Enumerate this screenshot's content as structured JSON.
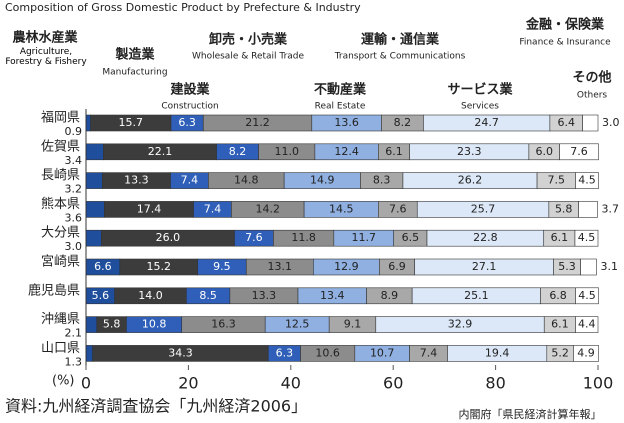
{
  "chart_data": {
    "type": "stacked_barh",
    "subtitle": "Composition of Gross Domestic Product by Prefecture & Industry",
    "categories": [
      "福岡県",
      "佐賀県",
      "長崎県",
      "熊本県",
      "大分県",
      "宮崎県",
      "鹿児島県",
      "沖縄県",
      "山口県"
    ],
    "series": [
      {
        "name": "農林水産業",
        "name_en": "Agriculture, Forestry & Fishery",
        "color": "#1f4e9c",
        "values": [
          0.9,
          3.4,
          3.2,
          3.6,
          3.0,
          6.6,
          5.6,
          2.1,
          1.3
        ],
        "value_labels": [
          "0.9",
          "3.4",
          "3.2",
          "3.6",
          "3.0",
          "6.6",
          "5.6",
          "2.1",
          "1.3"
        ]
      },
      {
        "name": "製造業",
        "name_en": "Manufacturing",
        "color": "#3c3c3c",
        "values": [
          15.7,
          22.1,
          13.3,
          17.4,
          26.0,
          15.2,
          14.0,
          5.8,
          34.3
        ],
        "value_labels": [
          "15.7",
          "22.1",
          "13.3",
          "17.4",
          "26.0",
          "15.2",
          "14.0",
          "5.8",
          "34.3"
        ]
      },
      {
        "name": "建設業",
        "name_en": "Construction",
        "color": "#2f5fb8",
        "values": [
          6.3,
          8.2,
          7.4,
          7.4,
          7.6,
          9.5,
          8.5,
          10.8,
          6.3
        ],
        "value_labels": [
          "6.3",
          "8.2",
          "7.4",
          "7.4",
          "7.6",
          "9.5",
          "8.5",
          "10.8",
          "6.3"
        ]
      },
      {
        "name": "卸売・小売業",
        "name_en": "Wholesale & Retail Trade",
        "color": "#8c8c8c",
        "values": [
          21.2,
          11.0,
          14.8,
          14.2,
          11.8,
          13.1,
          13.3,
          16.3,
          10.6
        ],
        "value_labels": [
          "21.2",
          "11.0",
          "14.8",
          "14.2",
          "11.8",
          "13.1",
          "13.3",
          "16.3",
          "10.6"
        ]
      },
      {
        "name": "不動産業",
        "name_en": "Real Estate",
        "color": "#8fb0e0",
        "values": [
          13.6,
          12.4,
          14.9,
          14.5,
          11.7,
          12.9,
          13.4,
          12.5,
          10.7
        ],
        "value_labels": [
          "13.6",
          "12.4",
          "14.9",
          "14.5",
          "11.7",
          "12.9",
          "13.4",
          "12.5",
          "10.7"
        ]
      },
      {
        "name": "運輸・通信業",
        "name_en": "Transport & Communications",
        "color": "#a8a8a8",
        "values": [
          8.2,
          6.1,
          8.3,
          7.6,
          6.5,
          6.9,
          8.9,
          9.1,
          7.4
        ],
        "value_labels": [
          "8.2",
          "6.1",
          "8.3",
          "7.6",
          "6.5",
          "6.9",
          "8.9",
          "9.1",
          "7.4"
        ]
      },
      {
        "name": "サービス業",
        "name_en": "Services",
        "color": "#dce8f7",
        "values": [
          24.7,
          23.3,
          26.2,
          25.7,
          22.8,
          27.1,
          25.1,
          32.9,
          19.4
        ],
        "value_labels": [
          "24.7",
          "23.3",
          "26.2",
          "25.7",
          "22.8",
          "27.1",
          "25.1",
          "32.9",
          "19.4"
        ]
      },
      {
        "name": "金融・保険業",
        "name_en": "Finance & Insurance",
        "color": "#d2d2d2",
        "values": [
          6.4,
          6.0,
          7.5,
          5.8,
          6.1,
          5.3,
          6.8,
          6.1,
          5.2
        ],
        "value_labels": [
          "6.4",
          "6.0",
          "7.5",
          "5.8",
          "6.1",
          "5.3",
          "6.8",
          "6.1",
          "5.2"
        ]
      },
      {
        "name": "その他",
        "name_en": "Others",
        "color": "#ffffff",
        "values": [
          3.0,
          7.6,
          4.5,
          3.7,
          4.5,
          3.1,
          4.5,
          4.4,
          4.9
        ],
        "value_labels": [
          "3.0",
          "7.6",
          "4.5",
          "3.7",
          "4.5",
          "3.1",
          "4.5",
          "4.4",
          "4.9"
        ]
      }
    ],
    "xlim": [
      0,
      100
    ],
    "xticks": [
      0,
      20,
      40,
      60,
      80,
      100
    ],
    "unit_label": "(%)",
    "source": "資料:九州経済調査協会「九州経済2006」",
    "note": "内閣府「県民経済計算年報」"
  }
}
